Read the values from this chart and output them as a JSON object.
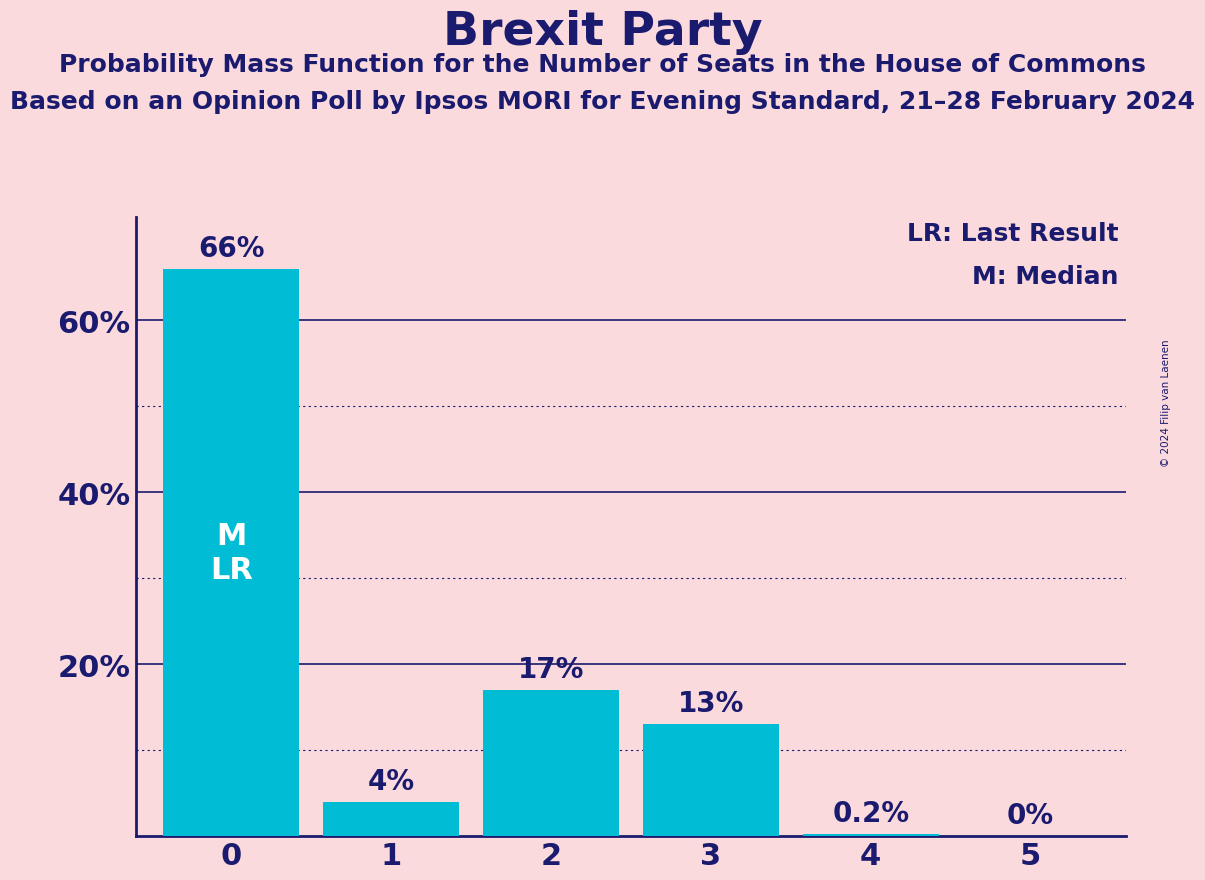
{
  "title": "Brexit Party",
  "subtitle1": "Probability Mass Function for the Number of Seats in the House of Commons",
  "subtitle2": "Based on an Opinion Poll by Ipsos MORI for Evening Standard, 21–28 February 2024",
  "copyright": "© 2024 Filip van Laenen",
  "categories": [
    0,
    1,
    2,
    3,
    4,
    5
  ],
  "values": [
    66,
    4,
    17,
    13,
    0.2,
    0
  ],
  "bar_color": "#00BCD4",
  "background_color": "#FADADD",
  "title_color": "#1a1a6e",
  "label_color": "#1a1a6e",
  "major_gridlines": [
    20,
    40,
    60
  ],
  "minor_gridlines": [
    10,
    30,
    50
  ],
  "ylim": [
    0,
    72
  ],
  "legend_lr": "LR: Last Result",
  "legend_m": "M: Median",
  "axis_color": "#1a1a6e",
  "value_labels": [
    "66%",
    "4%",
    "17%",
    "13%",
    "0.2%",
    "0%"
  ],
  "title_fontsize": 34,
  "subtitle_fontsize": 18,
  "tick_fontsize": 22,
  "label_fontsize": 20,
  "legend_fontsize": 18,
  "ml_fontsize": 22,
  "bar_width": 0.85
}
